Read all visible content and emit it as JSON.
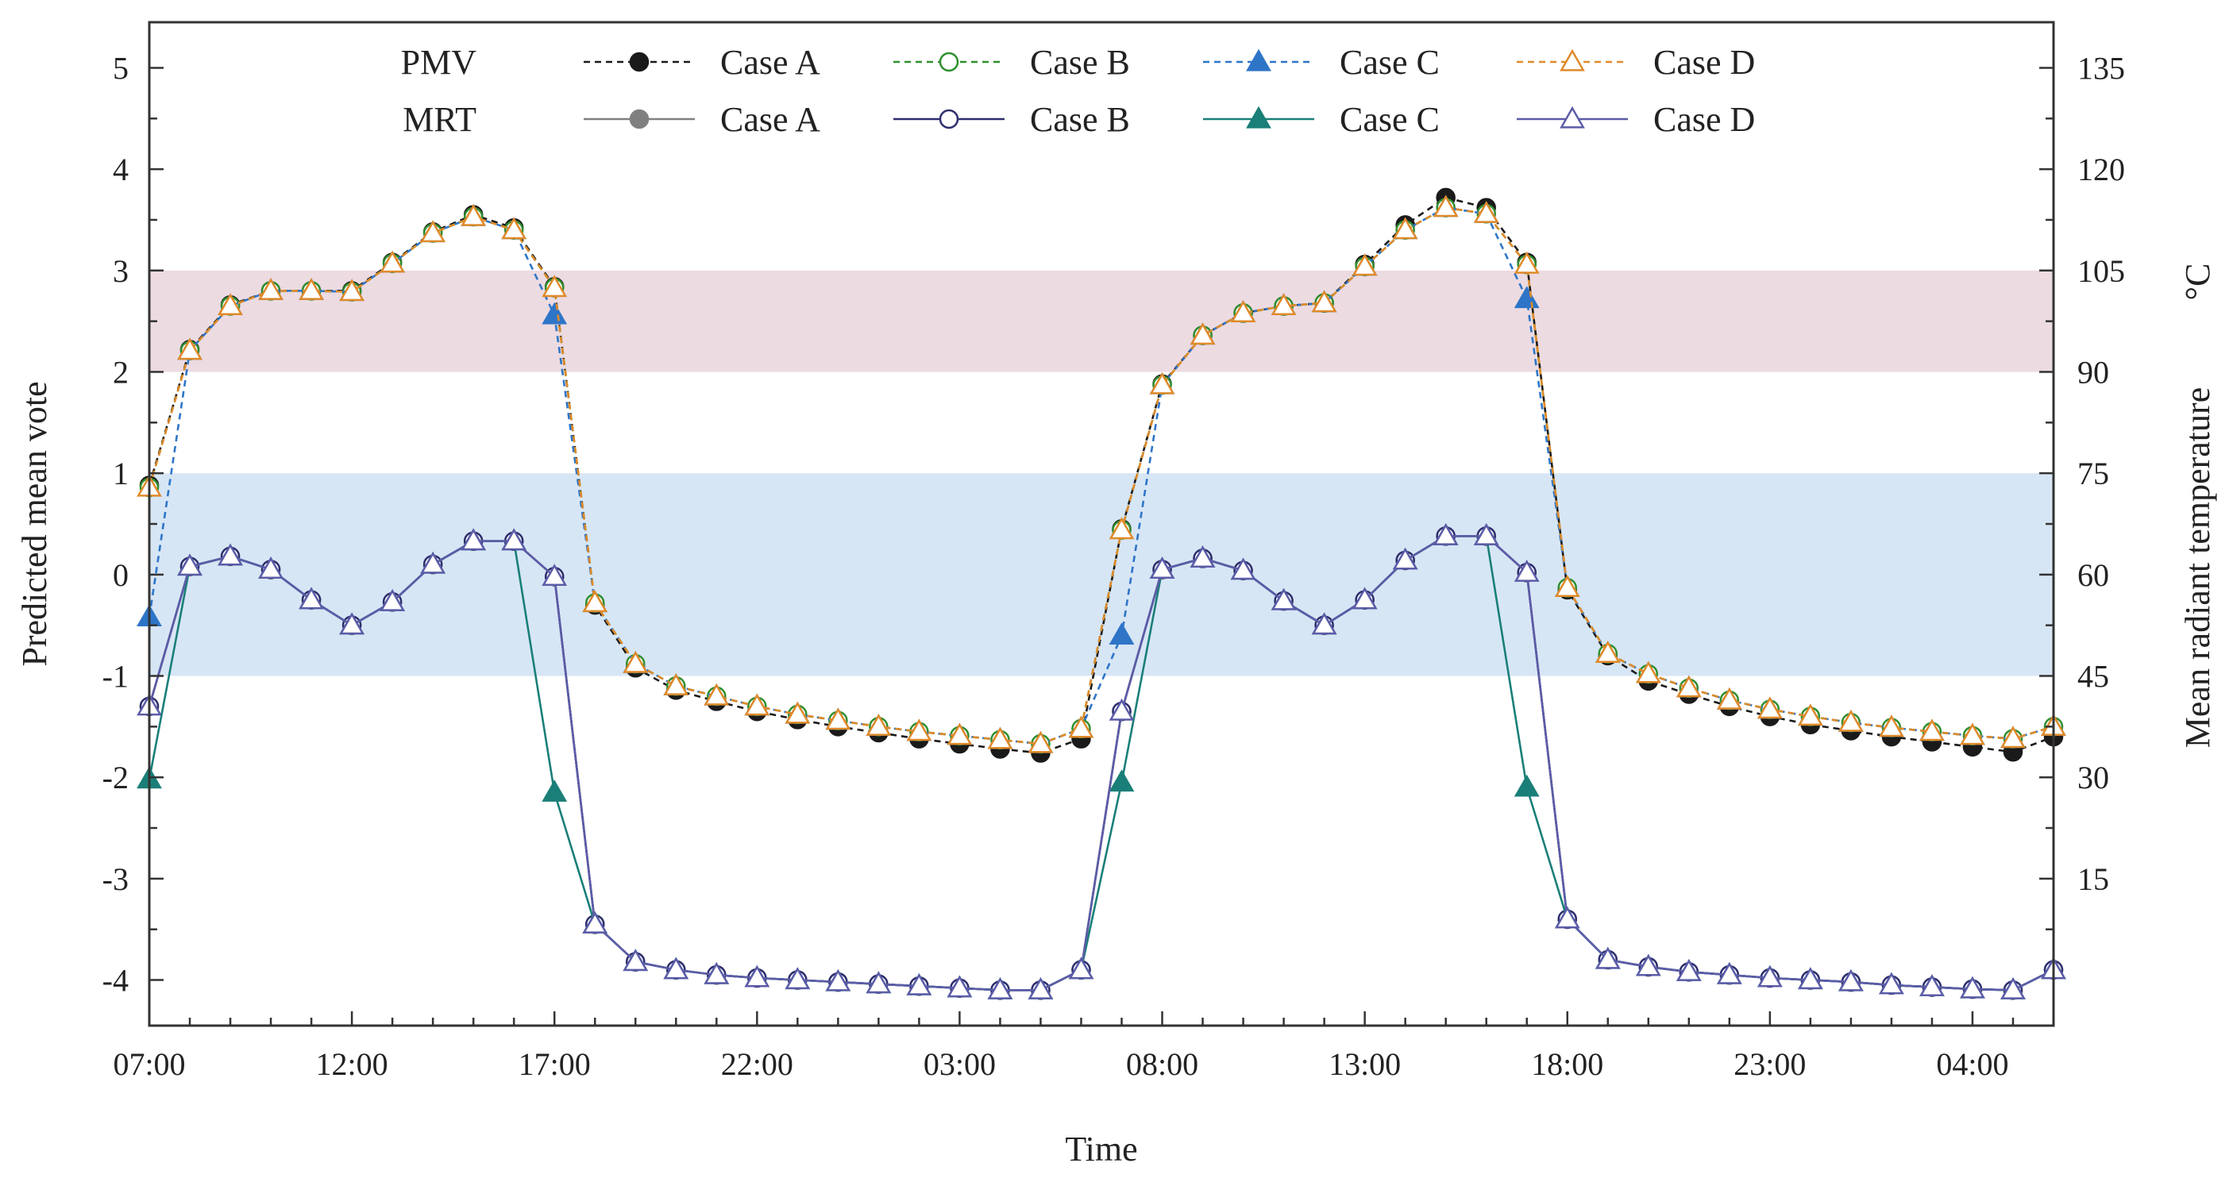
{
  "chart_data": {
    "type": "line",
    "xlabel": "Time",
    "ylabel_left": "Predicted mean vote",
    "ylabel_right": "Mean radiant temperature",
    "ylabel_right_unit": "°C",
    "xtick_labels": [
      "07:00",
      "12:00",
      "17:00",
      "22:00",
      "03:00",
      "08:00",
      "13:00",
      "18:00",
      "23:00",
      "04:00"
    ],
    "xtick_hours": [
      0,
      5,
      10,
      15,
      20,
      25,
      30,
      35,
      40,
      45
    ],
    "x_hours_range": [
      0,
      47
    ],
    "yleft_ticks": [
      5,
      4,
      3,
      2,
      1,
      0,
      -1,
      -2,
      -3,
      -4
    ],
    "yleft_tick_labels": [
      "5",
      "4",
      "3",
      "2",
      "1",
      "0",
      "-1",
      "-2",
      "-3",
      "-4"
    ],
    "yleft_range": [
      -4.45,
      5.45
    ],
    "yright_ticks": [
      15,
      30,
      45,
      60,
      75,
      90,
      105,
      120,
      135
    ],
    "yright_tick_labels": [
      "15",
      "30",
      "45",
      "60",
      "75",
      "90",
      "105",
      "120",
      "135"
    ],
    "yright_note": "right axis is linearly aligned with left axis: MRT = 60 + 15 × PMV",
    "bands": [
      {
        "name": "hot-band",
        "ymin": 2,
        "ymax": 3,
        "color": "#ecdbe1"
      },
      {
        "name": "comfort-band",
        "ymin": -1,
        "ymax": 1,
        "color": "#d7e6f5"
      }
    ],
    "legend": {
      "position": "top",
      "rows": [
        {
          "label": "PMV",
          "entries": [
            {
              "name": "Case A",
              "series": "pmv_A"
            },
            {
              "name": "Case B",
              "series": "pmv_B"
            },
            {
              "name": "Case C",
              "series": "pmv_C"
            },
            {
              "name": "Case D",
              "series": "pmv_D"
            }
          ]
        },
        {
          "label": "MRT",
          "entries": [
            {
              "name": "Case A",
              "series": "mrt_A"
            },
            {
              "name": "Case B",
              "series": "mrt_B"
            },
            {
              "name": "Case C",
              "series": "mrt_C"
            },
            {
              "name": "Case D",
              "series": "mrt_D"
            }
          ]
        }
      ]
    },
    "series": [
      {
        "id": "mrt_A",
        "group": "MRT",
        "name": "Case A",
        "axis": "left",
        "color": "#808080",
        "dash": false,
        "marker": "circle",
        "fill": "#808080",
        "values": [
          -1.3,
          0.08,
          0.18,
          0.05,
          -0.25,
          -0.5,
          -0.27,
          0.1,
          0.33,
          0.33,
          -0.02,
          -3.45,
          -3.82,
          -3.9,
          -3.95,
          -3.98,
          -4,
          -4.02,
          -4.04,
          -4.06,
          -4.08,
          -4.1,
          -4.1,
          -3.9,
          -1.35,
          0.05,
          0.16,
          0.04,
          -0.26,
          -0.5,
          -0.25,
          0.14,
          0.38,
          0.38,
          0.02,
          -3.4,
          -3.8,
          -3.87,
          -3.92,
          -3.95,
          -3.98,
          -4,
          -4.02,
          -4.05,
          -4.07,
          -4.09,
          -4.1,
          -3.9
        ]
      },
      {
        "id": "mrt_B",
        "group": "MRT",
        "name": "Case B",
        "axis": "left",
        "color": "#2e2e6e",
        "dash": false,
        "marker": "circle",
        "fill": "#ffffff",
        "values": [
          -1.3,
          0.08,
          0.18,
          0.05,
          -0.25,
          -0.5,
          -0.27,
          0.1,
          0.33,
          0.33,
          -0.02,
          -3.45,
          -3.82,
          -3.9,
          -3.95,
          -3.98,
          -4,
          -4.02,
          -4.04,
          -4.06,
          -4.08,
          -4.1,
          -4.1,
          -3.9,
          -1.35,
          0.05,
          0.16,
          0.04,
          -0.26,
          -0.5,
          -0.25,
          0.14,
          0.38,
          0.38,
          0.02,
          -3.4,
          -3.8,
          -3.87,
          -3.92,
          -3.95,
          -3.98,
          -4,
          -4.02,
          -4.05,
          -4.07,
          -4.09,
          -4.1,
          -3.9
        ]
      },
      {
        "id": "mrt_C",
        "group": "MRT",
        "name": "Case C",
        "axis": "left",
        "color": "#1a7f78",
        "dash": false,
        "marker": "triangle",
        "fill": "#1a7f78",
        "values": [
          -2.02,
          0.08,
          0.18,
          0.05,
          -0.25,
          -0.5,
          -0.27,
          0.1,
          0.33,
          0.33,
          -2.15,
          -3.45,
          -3.82,
          -3.9,
          -3.95,
          -3.98,
          -4,
          -4.02,
          -4.04,
          -4.06,
          -4.08,
          -4.1,
          -4.1,
          -3.9,
          -2.05,
          0.05,
          0.16,
          0.04,
          -0.26,
          -0.5,
          -0.25,
          0.14,
          0.38,
          0.38,
          -2.1,
          -3.4,
          -3.8,
          -3.87,
          -3.92,
          -3.95,
          -3.98,
          -4,
          -4.02,
          -4.05,
          -4.07,
          -4.09,
          -4.1,
          -3.9
        ]
      },
      {
        "id": "mrt_D",
        "group": "MRT",
        "name": "Case D",
        "axis": "left",
        "color": "#5c5ca8",
        "dash": false,
        "marker": "triangle",
        "fill": "#ffffff",
        "values": [
          -1.3,
          0.08,
          0.18,
          0.05,
          -0.25,
          -0.5,
          -0.27,
          0.1,
          0.33,
          0.33,
          -0.02,
          -3.45,
          -3.82,
          -3.9,
          -3.95,
          -3.98,
          -4,
          -4.02,
          -4.04,
          -4.06,
          -4.08,
          -4.1,
          -4.1,
          -3.9,
          -1.35,
          0.05,
          0.16,
          0.04,
          -0.26,
          -0.5,
          -0.25,
          0.14,
          0.38,
          0.38,
          0.02,
          -3.4,
          -3.8,
          -3.87,
          -3.92,
          -3.95,
          -3.98,
          -4,
          -4.02,
          -4.05,
          -4.07,
          -4.09,
          -4.1,
          -3.9
        ]
      },
      {
        "id": "pmv_A",
        "group": "PMV",
        "name": "Case A",
        "axis": "left",
        "color": "#1a1a1a",
        "dash": true,
        "marker": "circle",
        "fill": "#1a1a1a",
        "values": [
          0.88,
          2.22,
          2.66,
          2.8,
          2.8,
          2.8,
          3.08,
          3.38,
          3.55,
          3.42,
          2.84,
          -0.3,
          -0.92,
          -1.14,
          -1.25,
          -1.35,
          -1.43,
          -1.5,
          -1.56,
          -1.62,
          -1.67,
          -1.72,
          -1.76,
          -1.62,
          0.45,
          1.88,
          2.36,
          2.58,
          2.65,
          2.68,
          3.06,
          3.45,
          3.72,
          3.62,
          3.08,
          -0.15,
          -0.8,
          -1.05,
          -1.18,
          -1.3,
          -1.4,
          -1.48,
          -1.54,
          -1.6,
          -1.65,
          -1.7,
          -1.75,
          -1.6
        ]
      },
      {
        "id": "pmv_B",
        "group": "PMV",
        "name": "Case B",
        "axis": "left",
        "color": "#2f8f2f",
        "dash": true,
        "marker": "circle",
        "fill": "#ffffff",
        "values": [
          0.86,
          2.21,
          2.65,
          2.8,
          2.8,
          2.79,
          3.07,
          3.37,
          3.53,
          3.4,
          2.83,
          -0.28,
          -0.88,
          -1.1,
          -1.2,
          -1.3,
          -1.38,
          -1.44,
          -1.5,
          -1.55,
          -1.59,
          -1.63,
          -1.67,
          -1.52,
          0.44,
          1.87,
          2.36,
          2.58,
          2.65,
          2.68,
          3.04,
          3.4,
          3.62,
          3.56,
          3.06,
          -0.13,
          -0.78,
          -0.98,
          -1.12,
          -1.24,
          -1.33,
          -1.4,
          -1.46,
          -1.51,
          -1.55,
          -1.59,
          -1.62,
          -1.5
        ]
      },
      {
        "id": "pmv_C",
        "group": "PMV",
        "name": "Case C",
        "axis": "left",
        "color": "#2e75c7",
        "dash": true,
        "marker": "triangle",
        "fill": "#2e75c7",
        "values": [
          -0.42,
          2.21,
          2.65,
          2.8,
          2.8,
          2.79,
          3.07,
          3.37,
          3.53,
          3.4,
          2.56,
          -0.28,
          -0.88,
          -1.1,
          -1.2,
          -1.3,
          -1.38,
          -1.44,
          -1.5,
          -1.55,
          -1.59,
          -1.63,
          -1.67,
          -1.52,
          -0.6,
          1.87,
          2.36,
          2.58,
          2.65,
          2.68,
          3.04,
          3.4,
          3.62,
          3.56,
          2.72,
          -0.13,
          -0.78,
          -0.98,
          -1.12,
          -1.24,
          -1.33,
          -1.4,
          -1.46,
          -1.51,
          -1.55,
          -1.59,
          -1.62,
          -1.5
        ]
      },
      {
        "id": "pmv_D",
        "group": "PMV",
        "name": "Case D",
        "axis": "left",
        "color": "#e08a2a",
        "dash": true,
        "marker": "triangle",
        "fill": "#ffffff",
        "values": [
          0.86,
          2.21,
          2.65,
          2.8,
          2.8,
          2.79,
          3.07,
          3.37,
          3.53,
          3.4,
          2.83,
          -0.28,
          -0.88,
          -1.1,
          -1.2,
          -1.3,
          -1.38,
          -1.44,
          -1.5,
          -1.55,
          -1.59,
          -1.63,
          -1.67,
          -1.52,
          0.44,
          1.87,
          2.36,
          2.58,
          2.65,
          2.68,
          3.04,
          3.4,
          3.62,
          3.56,
          3.06,
          -0.13,
          -0.78,
          -0.98,
          -1.12,
          -1.24,
          -1.33,
          -1.4,
          -1.46,
          -1.51,
          -1.55,
          -1.59,
          -1.62,
          -1.5
        ]
      }
    ]
  }
}
